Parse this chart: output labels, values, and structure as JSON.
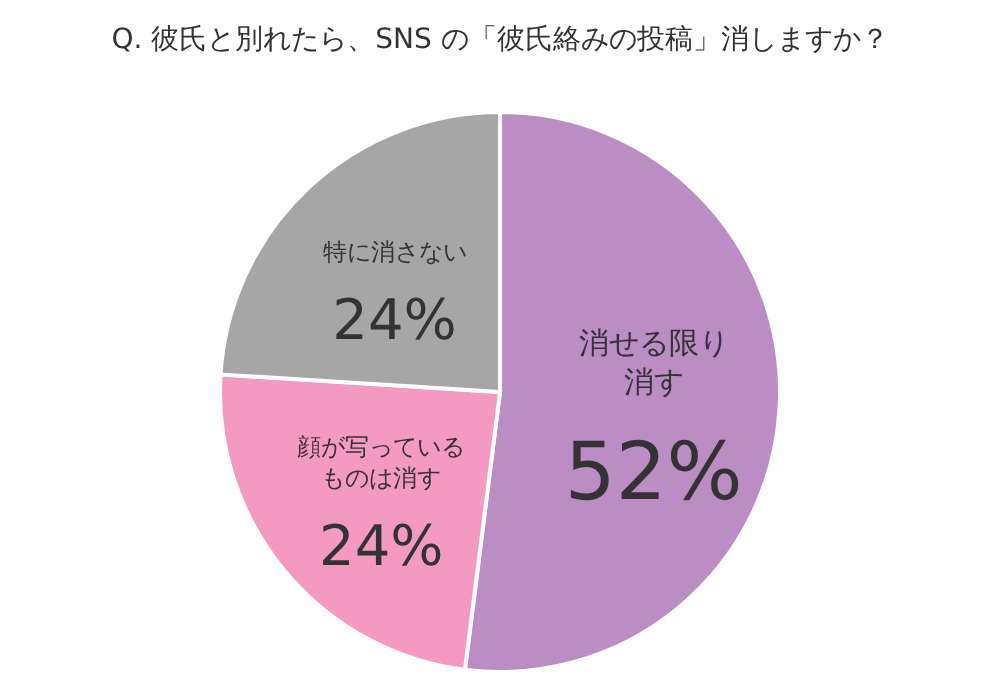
{
  "chart_data": {
    "type": "pie",
    "title": "Q. 彼氏と別れたら、SNS の「彼氏絡みの投稿」消しますか？",
    "categories": [
      "消せる限り消す",
      "顔が写っているものは消す",
      "特に消さない"
    ],
    "values": [
      52,
      24,
      24
    ],
    "colors": [
      "#bb8dc4",
      "#f49ac2",
      "#a6a6a6"
    ],
    "value_labels": [
      "52%",
      "24%",
      "24%"
    ]
  }
}
